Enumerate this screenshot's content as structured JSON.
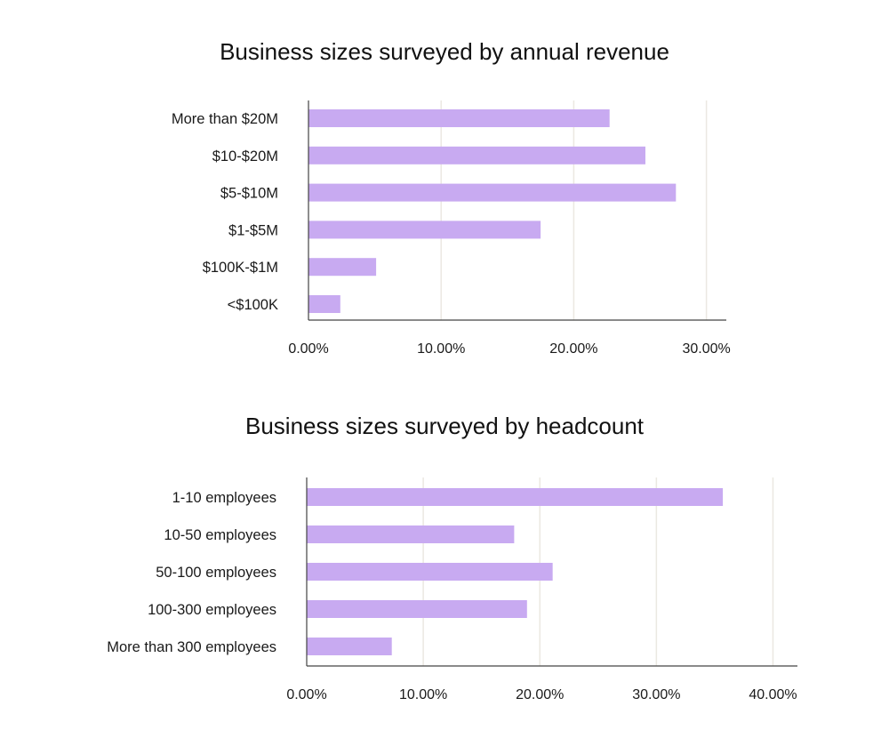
{
  "colors": {
    "bar": "#c8aaf1",
    "grid": "#ebe8e2",
    "axis": "#444444",
    "text": "#1a1a1a"
  },
  "chart_data": [
    {
      "type": "bar",
      "orientation": "horizontal",
      "title": "Business sizes surveyed by annual revenue",
      "xlabel": "",
      "ylabel": "",
      "categories": [
        "More than $20M",
        "$10-$20M",
        "$5-$10M",
        "$1-$5M",
        "$100K-$1M",
        "<$100K"
      ],
      "values": [
        22.7,
        25.4,
        27.7,
        17.5,
        5.1,
        2.4
      ],
      "xlim": [
        0,
        31.5
      ],
      "xticks": [
        0,
        10,
        20,
        30
      ],
      "xtick_labels": [
        "0.00%",
        "10.00%",
        "20.00%",
        "30.00%"
      ],
      "grid": true
    },
    {
      "type": "bar",
      "orientation": "horizontal",
      "title": "Business sizes surveyed by headcount",
      "xlabel": "",
      "ylabel": "",
      "categories": [
        "1-10 employees",
        "10-50 employees",
        "50-100 employees",
        "100-300 employees",
        "More than 300 employees"
      ],
      "values": [
        35.7,
        17.8,
        21.1,
        18.9,
        7.3
      ],
      "xlim": [
        0,
        42.1
      ],
      "xticks": [
        0,
        10,
        20,
        30,
        40
      ],
      "xtick_labels": [
        "0.00%",
        "10.00%",
        "20.00%",
        "30.00%",
        "40.00%"
      ],
      "grid": true
    }
  ]
}
